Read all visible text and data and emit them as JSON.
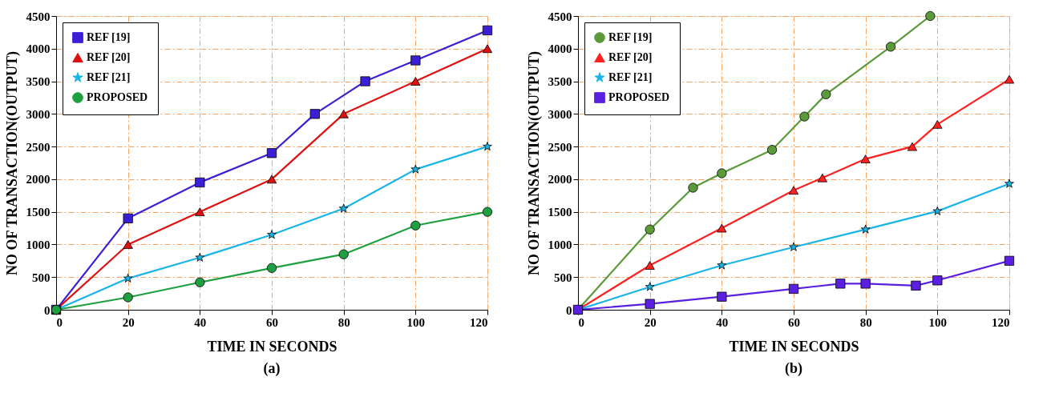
{
  "chart_data": [
    {
      "type": "line",
      "title": "(a)",
      "xlabel": "TIME IN SECONDS",
      "ylabel": "NO OF TRANSACTION(OUTPUT)",
      "xlim": [
        0,
        120
      ],
      "ylim": [
        0,
        4500
      ],
      "xticks": [
        0,
        20,
        40,
        60,
        80,
        100,
        120
      ],
      "yticks": [
        0,
        500,
        1000,
        1500,
        2000,
        2500,
        3000,
        3500,
        4000,
        4500
      ],
      "grid": true,
      "legend": "top left",
      "series": [
        {
          "name": "REF [19]",
          "color": "#3a1fd6",
          "marker": "square",
          "x": [
            0,
            20,
            40,
            60,
            72,
            86,
            100,
            120
          ],
          "values": [
            0,
            1400,
            1950,
            2400,
            3000,
            3500,
            3820,
            4280
          ]
        },
        {
          "name": "REF [20]",
          "color": "#e01010",
          "marker": "triangle",
          "x": [
            0,
            20,
            40,
            60,
            80,
            100,
            120
          ],
          "values": [
            0,
            1000,
            1500,
            2000,
            3000,
            3500,
            4000
          ]
        },
        {
          "name": "REF [21]",
          "color": "#19b5e8",
          "marker": "star",
          "x": [
            0,
            20,
            40,
            60,
            80,
            100,
            120
          ],
          "values": [
            0,
            480,
            800,
            1150,
            1550,
            2150,
            2500
          ]
        },
        {
          "name": "PROPOSED",
          "color": "#1fa040",
          "marker": "circle",
          "x": [
            0,
            20,
            40,
            60,
            80,
            100,
            120
          ],
          "values": [
            0,
            190,
            420,
            640,
            850,
            1290,
            1500
          ]
        }
      ]
    },
    {
      "type": "line",
      "title": "(b)",
      "xlabel": "TIME IN SECONDS",
      "ylabel": "NO OF TRANSACTION(OUTPUT)",
      "xlim": [
        0,
        120
      ],
      "ylim": [
        0,
        4500
      ],
      "xticks": [
        0,
        20,
        40,
        60,
        80,
        100,
        120
      ],
      "yticks": [
        0,
        500,
        1000,
        1500,
        2000,
        2500,
        3000,
        3500,
        4000,
        4500
      ],
      "grid": true,
      "legend": "top left",
      "series": [
        {
          "name": "REF [19]",
          "color": "#5a9a3a",
          "marker": "circle",
          "x": [
            0,
            20,
            32,
            40,
            54,
            63,
            69,
            87,
            98
          ],
          "values": [
            0,
            1230,
            1870,
            2090,
            2450,
            2960,
            3300,
            4030,
            4500
          ]
        },
        {
          "name": "REF [20]",
          "color": "#ff2020",
          "marker": "triangle",
          "x": [
            0,
            20,
            40,
            60,
            68,
            80,
            93,
            100,
            120
          ],
          "values": [
            0,
            680,
            1250,
            1830,
            2020,
            2310,
            2500,
            2840,
            3530
          ]
        },
        {
          "name": "REF [21]",
          "color": "#19b5e8",
          "marker": "star",
          "x": [
            0,
            20,
            40,
            60,
            80,
            100,
            120
          ],
          "values": [
            0,
            350,
            680,
            960,
            1230,
            1510,
            1930
          ]
        },
        {
          "name": "PROPOSED",
          "color": "#5a1fe0",
          "marker": "square",
          "x": [
            0,
            20,
            40,
            60,
            73,
            80,
            94,
            100,
            120
          ],
          "values": [
            0,
            90,
            200,
            320,
            400,
            400,
            370,
            450,
            750
          ]
        }
      ]
    }
  ]
}
